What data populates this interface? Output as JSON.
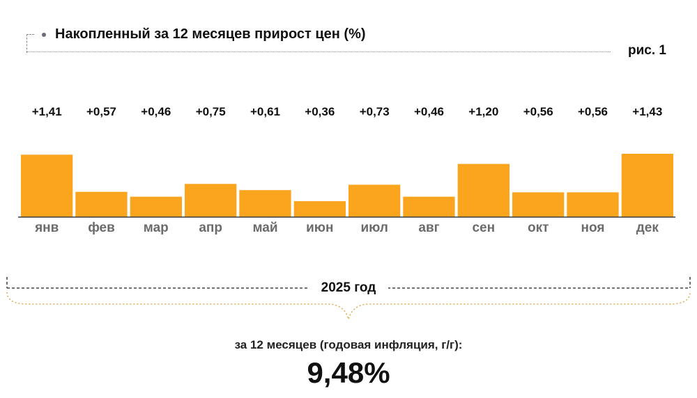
{
  "title": "Накопленный за 12 месяцев прирост цен (%)",
  "figure_label": "рис. 1",
  "chart_data": {
    "type": "bar",
    "categories": [
      "янв",
      "фев",
      "мар",
      "апр",
      "май",
      "июн",
      "июл",
      "авг",
      "сен",
      "окт",
      "ноя",
      "дек"
    ],
    "values": [
      1.41,
      0.57,
      0.46,
      0.75,
      0.61,
      0.36,
      0.73,
      0.46,
      1.2,
      0.56,
      0.56,
      1.43
    ],
    "value_labels": [
      "+1,41",
      "+0,57",
      "+0,46",
      "+0,75",
      "+0,61",
      "+0,36",
      "+0,73",
      "+0,46",
      "+1,20",
      "+0,56",
      "+0,56",
      "+1,43"
    ],
    "title": "Накопленный за 12 месяцев прирост цен (%)",
    "xlabel": "",
    "ylabel": "",
    "ylim": [
      0,
      1.43
    ],
    "grid": false,
    "bar_color": "#FBA51E"
  },
  "period_label": "2025 год",
  "annual_caption": "за 12 месяцев (годовая инфляция, г/г):",
  "annual_value": "9,48%"
}
